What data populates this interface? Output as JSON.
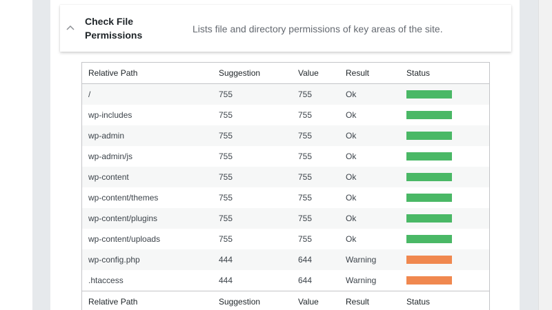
{
  "section": {
    "title": "Check File Permissions",
    "description": "Lists file and directory permissions of key areas of the site."
  },
  "table": {
    "headers": [
      "Relative Path",
      "Suggestion",
      "Value",
      "Result",
      "Status"
    ],
    "rows": [
      {
        "path": "/",
        "suggestion": "755",
        "value": "755",
        "result": "Ok",
        "status": "ok"
      },
      {
        "path": "wp-includes",
        "suggestion": "755",
        "value": "755",
        "result": "Ok",
        "status": "ok"
      },
      {
        "path": "wp-admin",
        "suggestion": "755",
        "value": "755",
        "result": "Ok",
        "status": "ok"
      },
      {
        "path": "wp-admin/js",
        "suggestion": "755",
        "value": "755",
        "result": "Ok",
        "status": "ok"
      },
      {
        "path": "wp-content",
        "suggestion": "755",
        "value": "755",
        "result": "Ok",
        "status": "ok"
      },
      {
        "path": "wp-content/themes",
        "suggestion": "755",
        "value": "755",
        "result": "Ok",
        "status": "ok"
      },
      {
        "path": "wp-content/plugins",
        "suggestion": "755",
        "value": "755",
        "result": "Ok",
        "status": "ok"
      },
      {
        "path": "wp-content/uploads",
        "suggestion": "755",
        "value": "755",
        "result": "Ok",
        "status": "ok"
      },
      {
        "path": "wp-config.php",
        "suggestion": "444",
        "value": "644",
        "result": "Warning",
        "status": "warning"
      },
      {
        "path": ".htaccess",
        "suggestion": "444",
        "value": "644",
        "result": "Warning",
        "status": "warning"
      }
    ]
  },
  "icons": {
    "toggle": "chevron-up-icon"
  },
  "colors": {
    "ok": "#4ab866",
    "warning": "#f0884f",
    "panel_background": "#e6e9ec"
  }
}
